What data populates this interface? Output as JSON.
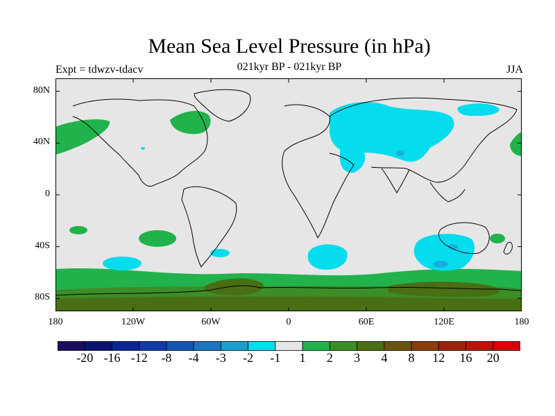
{
  "title": "Mean Sea Level Pressure (in hPa)",
  "subtitle_left": "Expt = tdwzv-tdacv",
  "subtitle_center": "021kyr BP - 021kyr BP",
  "subtitle_right": "JJA",
  "lat_ticks": [
    {
      "label": "80N",
      "lat": 80
    },
    {
      "label": "40N",
      "lat": 40
    },
    {
      "label": "0",
      "lat": 0
    },
    {
      "label": "40S",
      "lat": -40
    },
    {
      "label": "80S",
      "lat": -80
    }
  ],
  "lon_ticks": [
    {
      "label": "180",
      "lon": -180
    },
    {
      "label": "120W",
      "lon": -120
    },
    {
      "label": "60W",
      "lon": -60
    },
    {
      "label": "0",
      "lon": 0
    },
    {
      "label": "60E",
      "lon": 60
    },
    {
      "label": "120E",
      "lon": 120
    },
    {
      "label": "180",
      "lon": 180
    }
  ],
  "colorbar": {
    "colors": [
      "#1a0d5e",
      "#0a1470",
      "#0b2496",
      "#0f3aa8",
      "#1555b3",
      "#1c75c0",
      "#1a9ed0",
      "#05dcee",
      "#e6e6e6",
      "#22b24c",
      "#3c8c28",
      "#4a6e14",
      "#6b5212",
      "#8a3c0c",
      "#9c2208",
      "#b81408",
      "#d80008"
    ],
    "labels": [
      "-20",
      "-16",
      "-12",
      "-8",
      "-4",
      "-3",
      "-2",
      "-1",
      "1",
      "2",
      "3",
      "4",
      "8",
      "12",
      "16",
      "20"
    ]
  },
  "palette": {
    "background": "#e6e6e6",
    "neg1": "#05dcee",
    "neg2": "#1aaedc",
    "pos1": "#22b24c",
    "pos2": "#3c8c28",
    "pos3": "#4a6e14"
  }
}
